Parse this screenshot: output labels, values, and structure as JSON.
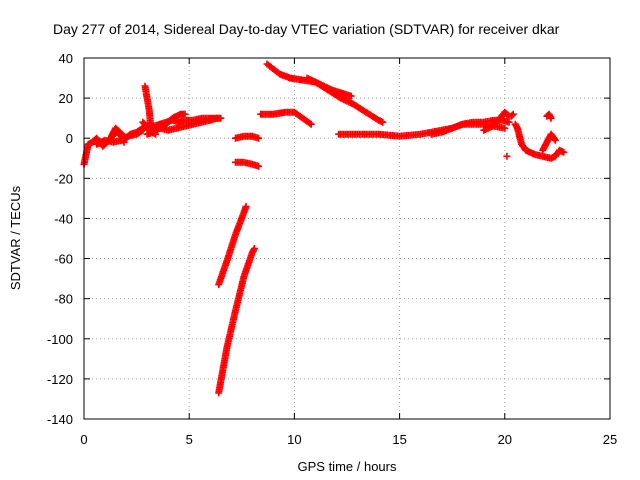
{
  "chart_data": {
    "type": "scatter",
    "title": "Day 277 of 2014, Sidereal Day-to-day VTEC variation (SDTVAR) for receiver dkar",
    "xlabel": "GPS time / hours",
    "ylabel": "SDTVAR / TECUs",
    "xlim": [
      0,
      25
    ],
    "ylim": [
      -140,
      40
    ],
    "xticks": [
      0,
      5,
      10,
      15,
      20,
      25
    ],
    "yticks": [
      -140,
      -120,
      -100,
      -80,
      -60,
      -40,
      -20,
      0,
      20,
      40
    ],
    "grid": true,
    "marker": "+",
    "color": "#ff0000",
    "segments": [
      [
        [
          0.0,
          -13
        ],
        [
          0.1,
          -8
        ],
        [
          0.2,
          -3
        ],
        [
          0.4,
          -2
        ],
        [
          0.6,
          0
        ],
        [
          0.9,
          -4
        ],
        [
          1.2,
          -1
        ],
        [
          1.5,
          3
        ],
        [
          1.8,
          2
        ],
        [
          2.0,
          0
        ],
        [
          2.2,
          2
        ],
        [
          2.5,
          3
        ],
        [
          2.8,
          5
        ],
        [
          3.0,
          6
        ],
        [
          3.3,
          6
        ],
        [
          3.6,
          7
        ],
        [
          3.9,
          8
        ],
        [
          4.2,
          9
        ],
        [
          4.5,
          8
        ],
        [
          4.8,
          9
        ],
        [
          5.2,
          9
        ],
        [
          5.6,
          10
        ],
        [
          6.0,
          10
        ],
        [
          6.3,
          10
        ]
      ],
      [
        [
          0.6,
          -3
        ],
        [
          1.0,
          -1
        ],
        [
          1.4,
          -2
        ],
        [
          1.8,
          -1
        ],
        [
          2.1,
          1
        ],
        [
          2.5,
          2
        ],
        [
          2.8,
          4
        ]
      ],
      [
        [
          1.3,
          1
        ],
        [
          1.5,
          5
        ],
        [
          1.7,
          3
        ],
        [
          1.9,
          -2
        ]
      ],
      [
        [
          2.9,
          26
        ],
        [
          3.0,
          20
        ],
        [
          3.1,
          14
        ],
        [
          3.15,
          8
        ],
        [
          3.2,
          5
        ]
      ],
      [
        [
          3.0,
          2
        ],
        [
          3.3,
          3
        ],
        [
          3.6,
          5
        ],
        [
          3.9,
          7
        ],
        [
          4.2,
          10
        ],
        [
          4.6,
          12
        ],
        [
          4.8,
          12
        ]
      ],
      [
        [
          3.6,
          5
        ],
        [
          4.0,
          4
        ],
        [
          4.4,
          5
        ],
        [
          4.8,
          6
        ],
        [
          5.2,
          7
        ],
        [
          5.6,
          8
        ],
        [
          6.0,
          9
        ],
        [
          6.3,
          10
        ],
        [
          6.5,
          10
        ]
      ],
      [
        [
          2.8,
          8
        ],
        [
          3.1,
          4
        ],
        [
          3.4,
          2
        ]
      ],
      [
        [
          7.2,
          0
        ],
        [
          7.6,
          1
        ],
        [
          8.0,
          1
        ],
        [
          8.3,
          0
        ]
      ],
      [
        [
          7.2,
          -12
        ],
        [
          7.6,
          -12
        ],
        [
          8.0,
          -13
        ],
        [
          8.3,
          -14
        ]
      ],
      [
        [
          6.4,
          -73
        ],
        [
          6.8,
          -61
        ],
        [
          7.2,
          -48
        ],
        [
          7.6,
          -37
        ],
        [
          7.7,
          -34
        ]
      ],
      [
        [
          6.4,
          -127
        ],
        [
          6.8,
          -104
        ],
        [
          7.2,
          -86
        ],
        [
          7.6,
          -69
        ],
        [
          8.0,
          -57
        ],
        [
          8.1,
          -55
        ]
      ],
      [
        [
          8.7,
          37
        ],
        [
          9.3,
          32
        ],
        [
          9.8,
          30
        ],
        [
          10.4,
          29
        ],
        [
          11.0,
          28
        ],
        [
          11.6,
          24
        ],
        [
          12.2,
          20
        ],
        [
          12.8,
          17
        ],
        [
          13.4,
          13
        ],
        [
          14.0,
          9
        ],
        [
          14.2,
          8
        ]
      ],
      [
        [
          10.6,
          30
        ],
        [
          11.2,
          27
        ],
        [
          11.8,
          24
        ],
        [
          12.4,
          22
        ],
        [
          12.7,
          21
        ]
      ],
      [
        [
          8.4,
          12
        ],
        [
          9.0,
          12
        ],
        [
          9.6,
          13
        ],
        [
          10.0,
          13
        ],
        [
          10.4,
          10
        ],
        [
          10.8,
          7
        ]
      ],
      [
        [
          12.1,
          2
        ],
        [
          13.0,
          2
        ],
        [
          14.0,
          2
        ],
        [
          15.0,
          1
        ],
        [
          16.0,
          2
        ],
        [
          16.5,
          3
        ],
        [
          17.0,
          4
        ],
        [
          17.5,
          5
        ],
        [
          18.0,
          7
        ],
        [
          18.5,
          8
        ],
        [
          19.0,
          8
        ],
        [
          19.5,
          9
        ],
        [
          19.9,
          9
        ],
        [
          20.2,
          8
        ]
      ],
      [
        [
          16.5,
          2
        ],
        [
          17.0,
          3
        ],
        [
          17.5,
          5
        ],
        [
          18.0,
          7
        ],
        [
          18.5,
          7
        ],
        [
          19.0,
          7
        ],
        [
          19.5,
          6
        ],
        [
          20.0,
          5
        ]
      ],
      [
        [
          19.0,
          4
        ],
        [
          19.4,
          6
        ],
        [
          19.7,
          9
        ],
        [
          20.0,
          13
        ],
        [
          20.2,
          11
        ]
      ],
      [
        [
          20.5,
          7
        ],
        [
          20.6,
          5
        ],
        [
          20.7,
          1
        ],
        [
          20.8,
          -3
        ],
        [
          21.0,
          -6
        ],
        [
          21.4,
          -8
        ],
        [
          21.8,
          -9
        ],
        [
          22.2,
          -10
        ],
        [
          22.4,
          -9
        ],
        [
          22.6,
          -6
        ],
        [
          22.8,
          -7
        ]
      ],
      [
        [
          21.8,
          -6
        ],
        [
          22.0,
          -2
        ],
        [
          22.2,
          2
        ],
        [
          22.4,
          -1
        ]
      ],
      [
        [
          20.1,
          -9
        ]
      ],
      [
        [
          22.0,
          11
        ],
        [
          22.1,
          12
        ],
        [
          22.2,
          10
        ]
      ],
      [
        [
          20.3,
          11
        ],
        [
          20.4,
          12
        ]
      ]
    ]
  }
}
